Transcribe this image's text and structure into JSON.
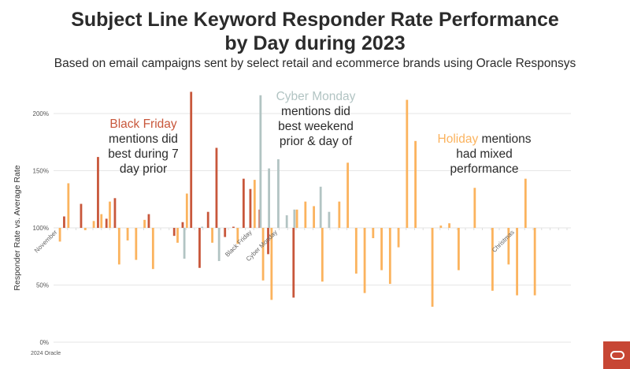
{
  "chart_data": {
    "type": "bar",
    "title_line1": "Subject Line Keyword Responder Rate Performance",
    "title_line2": "by Day during 2023",
    "subtitle": "Based on email campaigns sent by select retail and ecommerce brands using Oracle Responsys",
    "ylabel": "Responder Rate vs. Average Rate",
    "xlabel": "",
    "ylim": [
      0,
      220
    ],
    "baseline": 100,
    "yticks": [
      {
        "v": 0,
        "label": "0%"
      },
      {
        "v": 50,
        "label": "50%"
      },
      {
        "v": 100,
        "label": "100%"
      },
      {
        "v": 150,
        "label": "150%"
      },
      {
        "v": 200,
        "label": "200%"
      }
    ],
    "x_unit": "days since Nov 1, 2023",
    "xrange": [
      0,
      60
    ],
    "x_markers": [
      {
        "day": 0,
        "label": "November"
      },
      {
        "day": 23,
        "label": "Black Friday"
      },
      {
        "day": 26,
        "label": "Cyber Monday"
      },
      {
        "day": 54,
        "label": "Christmas"
      }
    ],
    "colors": {
      "black_friday": "#C8573B",
      "cyber_monday": "#B2C4C3",
      "holiday": "#FBB35E",
      "grid": "#E6E6E6"
    },
    "series_names": {
      "black_friday": "Black Friday",
      "cyber_monday": "Cyber Monday",
      "holiday": "Holiday"
    },
    "bars": [
      {
        "day": 0.1,
        "s": "holiday",
        "v": 88
      },
      {
        "day": 0.6,
        "s": "black_friday",
        "v": 110
      },
      {
        "day": 1.1,
        "s": "holiday",
        "v": 139
      },
      {
        "day": 2.6,
        "s": "black_friday",
        "v": 121
      },
      {
        "day": 3.1,
        "s": "holiday",
        "v": 98
      },
      {
        "day": 4.1,
        "s": "holiday",
        "v": 106
      },
      {
        "day": 4.6,
        "s": "black_friday",
        "v": 162
      },
      {
        "day": 5.0,
        "s": "holiday",
        "v": 112
      },
      {
        "day": 5.6,
        "s": "black_friday",
        "v": 108
      },
      {
        "day": 6.0,
        "s": "holiday",
        "v": 123
      },
      {
        "day": 6.6,
        "s": "black_friday",
        "v": 126
      },
      {
        "day": 7.1,
        "s": "holiday",
        "v": 68
      },
      {
        "day": 8.1,
        "s": "holiday",
        "v": 89
      },
      {
        "day": 9.1,
        "s": "holiday",
        "v": 72
      },
      {
        "day": 10.1,
        "s": "holiday",
        "v": 107
      },
      {
        "day": 10.6,
        "s": "black_friday",
        "v": 112
      },
      {
        "day": 11.1,
        "s": "holiday",
        "v": 64
      },
      {
        "day": 13.6,
        "s": "black_friday",
        "v": 93
      },
      {
        "day": 14.0,
        "s": "holiday",
        "v": 87
      },
      {
        "day": 14.6,
        "s": "black_friday",
        "v": 105
      },
      {
        "day": 14.8,
        "s": "cyber_monday",
        "v": 73
      },
      {
        "day": 15.1,
        "s": "holiday",
        "v": 130
      },
      {
        "day": 15.6,
        "s": "black_friday",
        "v": 219
      },
      {
        "day": 16.6,
        "s": "black_friday",
        "v": 65
      },
      {
        "day": 16.9,
        "s": "cyber_monday",
        "v": 101
      },
      {
        "day": 17.6,
        "s": "black_friday",
        "v": 114
      },
      {
        "day": 18.1,
        "s": "holiday",
        "v": 87
      },
      {
        "day": 18.6,
        "s": "black_friday",
        "v": 170
      },
      {
        "day": 18.9,
        "s": "cyber_monday",
        "v": 71
      },
      {
        "day": 19.6,
        "s": "black_friday",
        "v": 92
      },
      {
        "day": 20.6,
        "s": "black_friday",
        "v": 101
      },
      {
        "day": 21.1,
        "s": "holiday",
        "v": 86
      },
      {
        "day": 21.8,
        "s": "black_friday",
        "v": 143
      },
      {
        "day": 22.6,
        "s": "black_friday",
        "v": 134
      },
      {
        "day": 23.1,
        "s": "holiday",
        "v": 142
      },
      {
        "day": 23.7,
        "s": "black_friday",
        "v": 116
      },
      {
        "day": 23.8,
        "s": "cyber_monday",
        "v": 216
      },
      {
        "day": 24.1,
        "s": "holiday",
        "v": 54
      },
      {
        "day": 24.7,
        "s": "black_friday",
        "v": 77
      },
      {
        "day": 24.8,
        "s": "cyber_monday",
        "v": 152
      },
      {
        "day": 25.1,
        "s": "holiday",
        "v": 37
      },
      {
        "day": 25.9,
        "s": "cyber_monday",
        "v": 160
      },
      {
        "day": 26.9,
        "s": "cyber_monday",
        "v": 111
      },
      {
        "day": 27.7,
        "s": "black_friday",
        "v": 39
      },
      {
        "day": 27.8,
        "s": "cyber_monday",
        "v": 116
      },
      {
        "day": 28.1,
        "s": "holiday",
        "v": 116
      },
      {
        "day": 29.1,
        "s": "holiday",
        "v": 123
      },
      {
        "day": 30.1,
        "s": "holiday",
        "v": 119
      },
      {
        "day": 30.9,
        "s": "cyber_monday",
        "v": 136
      },
      {
        "day": 31.1,
        "s": "holiday",
        "v": 53
      },
      {
        "day": 31.9,
        "s": "cyber_monday",
        "v": 114
      },
      {
        "day": 33.1,
        "s": "holiday",
        "v": 123
      },
      {
        "day": 34.1,
        "s": "holiday",
        "v": 157
      },
      {
        "day": 35.1,
        "s": "holiday",
        "v": 60
      },
      {
        "day": 36.1,
        "s": "holiday",
        "v": 43
      },
      {
        "day": 37.1,
        "s": "holiday",
        "v": 91
      },
      {
        "day": 38.1,
        "s": "holiday",
        "v": 63
      },
      {
        "day": 39.1,
        "s": "holiday",
        "v": 51
      },
      {
        "day": 40.1,
        "s": "holiday",
        "v": 83
      },
      {
        "day": 41.1,
        "s": "holiday",
        "v": 212
      },
      {
        "day": 42.1,
        "s": "holiday",
        "v": 176
      },
      {
        "day": 44.1,
        "s": "holiday",
        "v": 31
      },
      {
        "day": 45.1,
        "s": "holiday",
        "v": 102
      },
      {
        "day": 46.1,
        "s": "holiday",
        "v": 104
      },
      {
        "day": 47.2,
        "s": "holiday",
        "v": 63
      },
      {
        "day": 49.1,
        "s": "holiday",
        "v": 135
      },
      {
        "day": 51.2,
        "s": "holiday",
        "v": 45
      },
      {
        "day": 53.1,
        "s": "holiday",
        "v": 68
      },
      {
        "day": 54.1,
        "s": "holiday",
        "v": 41
      },
      {
        "day": 55.1,
        "s": "holiday",
        "v": 143
      },
      {
        "day": 56.2,
        "s": "holiday",
        "v": 41
      }
    ],
    "annotations": {
      "black_friday": {
        "keyword": "Black Friday",
        "line1": "mentions did",
        "line2": "best during 7",
        "line3": "day prior"
      },
      "cyber_monday": {
        "keyword": "Cyber Monday",
        "line1": "mentions did",
        "line2": "best weekend",
        "line3": "prior & day of"
      },
      "holiday": {
        "keyword": "Holiday",
        "line1": " mentions",
        "line2": "had mixed",
        "line3": "performance"
      }
    }
  },
  "footer": "2024 Oracle"
}
